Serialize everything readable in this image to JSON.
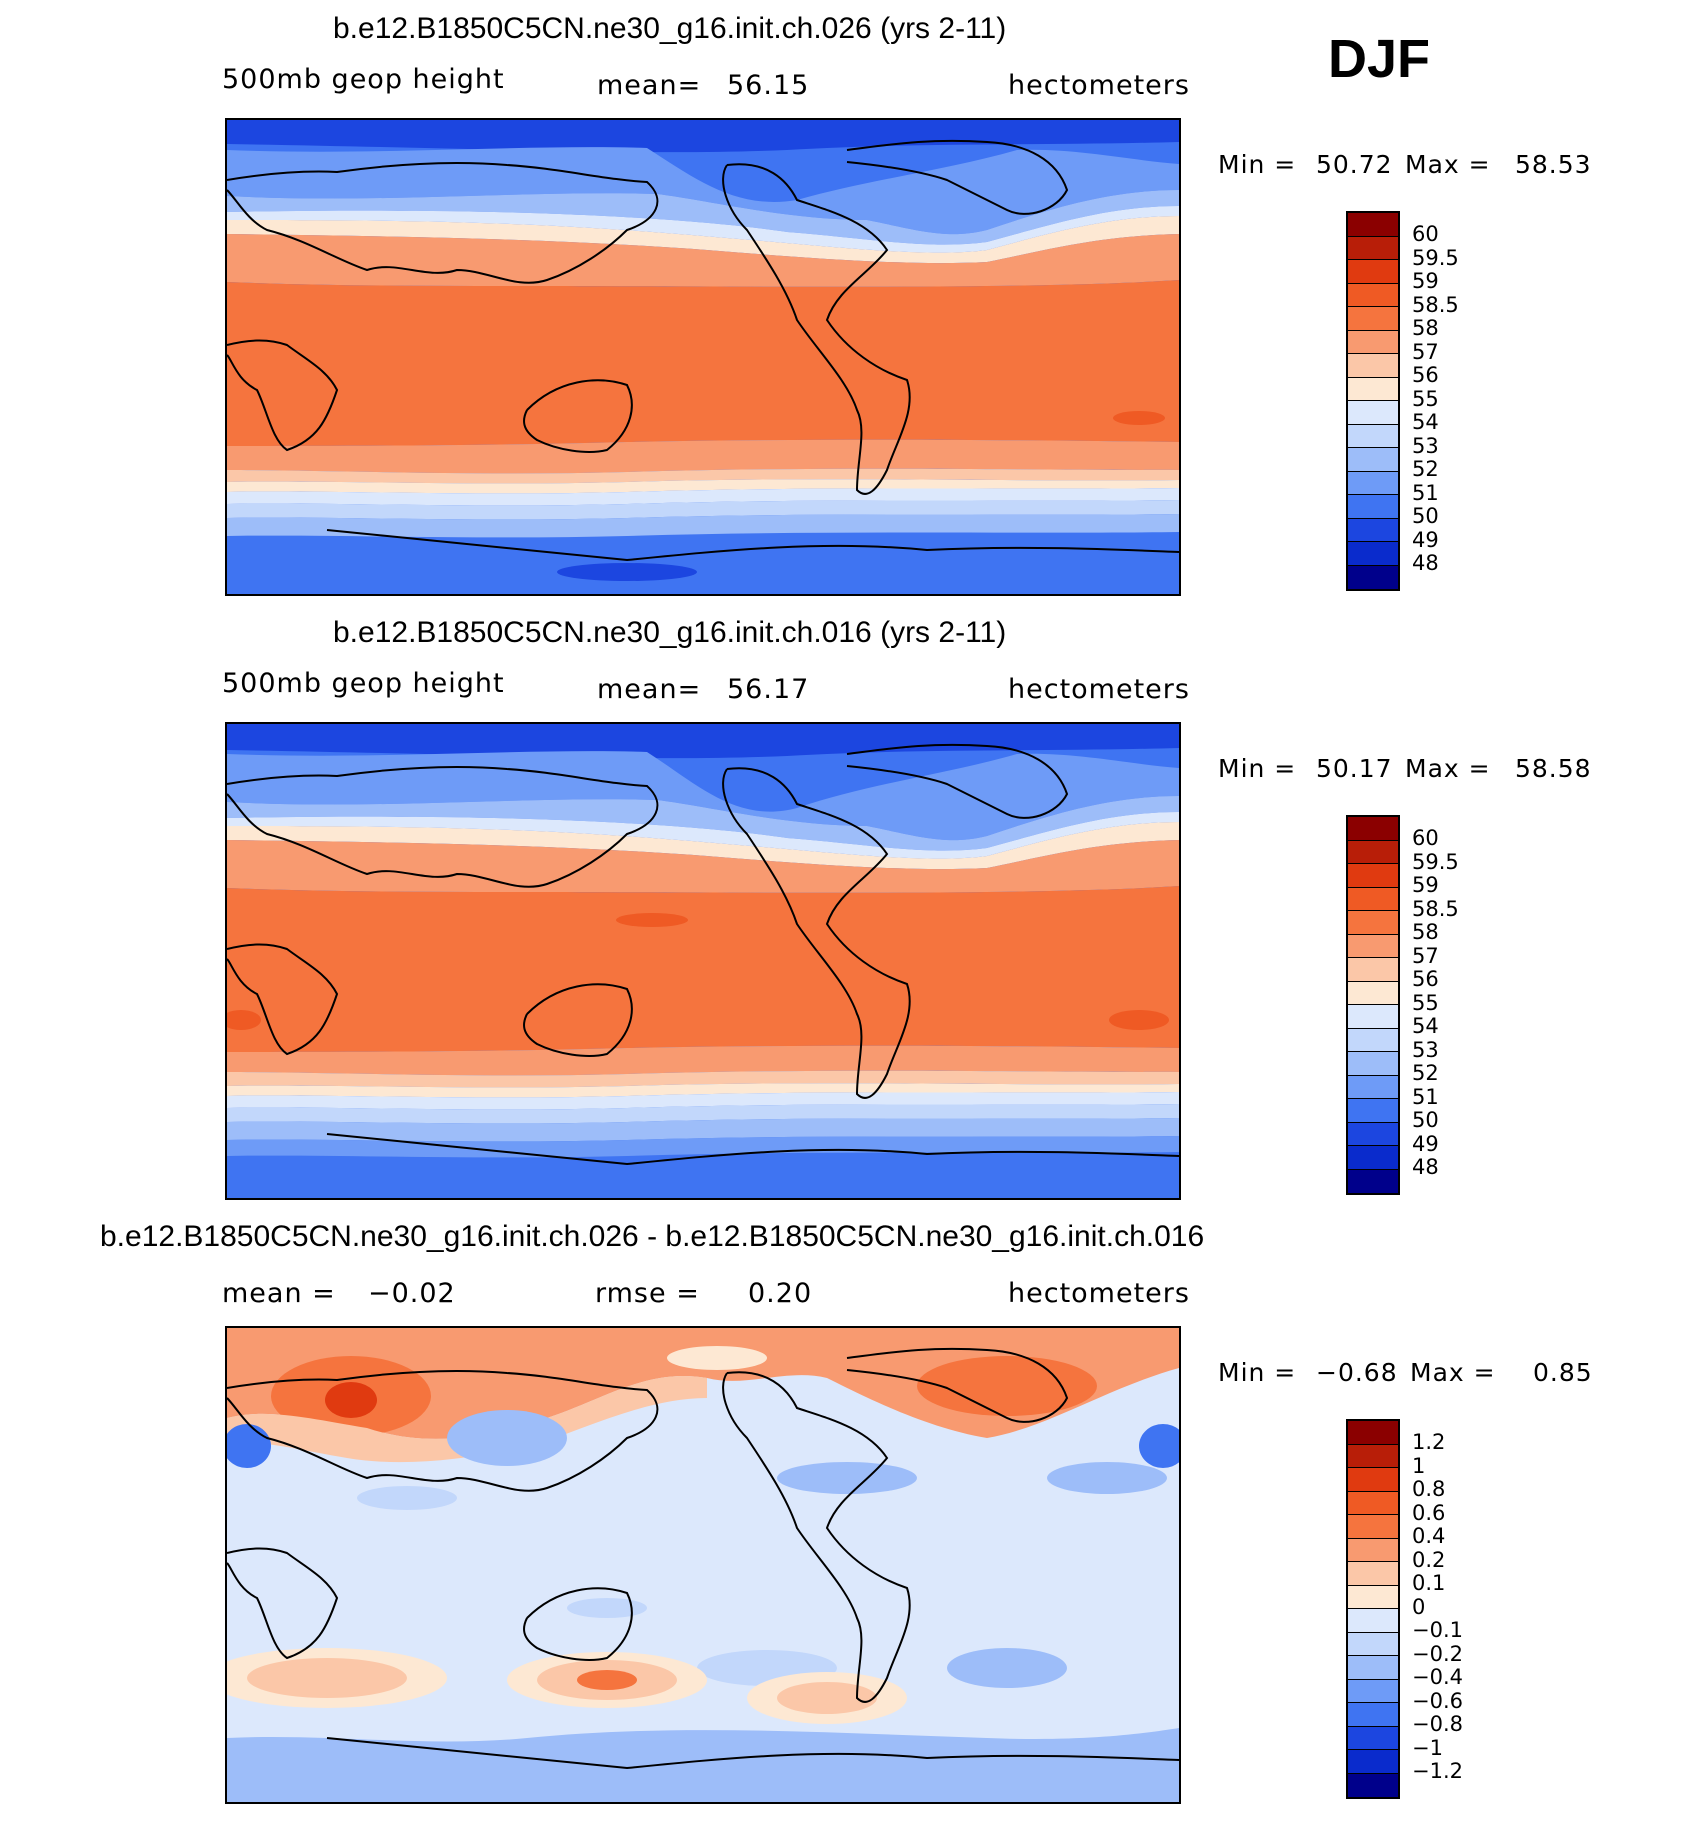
{
  "season": "DJF",
  "colors": {
    "dark_blue": "#00008b",
    "blue1": "#0a2bcc",
    "blue2": "#1c46e0",
    "blue3": "#3f74f2",
    "blue4": "#6e9bf7",
    "blue5": "#9dbdf9",
    "blue6": "#c2d7fb",
    "blue7": "#dce8fc",
    "cream": "#fde8d3",
    "peach": "#fbc7a8",
    "salmon": "#f89a70",
    "orange": "#f5743e",
    "orange2": "#ef5a24",
    "red1": "#e03a10",
    "red2": "#b81e08",
    "dark_red": "#8b0000",
    "coast": "#000000"
  },
  "chart_data": [
    {
      "type": "heatmap",
      "title": "b.e12.B1850C5CN.ne30_g16.init.ch.026 (yrs 2-11)",
      "variable": "500mb  geop  height",
      "mean_label": "mean=",
      "mean": "56.15",
      "units": "hectometers",
      "min_label": "Min  =",
      "min": "50.72",
      "max_label": "Max  =",
      "max": "58.53",
      "x_range_deg": [
        0,
        360
      ],
      "y_range_deg": [
        -90,
        90
      ],
      "colorbar_levels": [
        "60",
        "59.5",
        "59",
        "58.5",
        "58",
        "57",
        "56",
        "55",
        "54",
        "53",
        "52",
        "51",
        "50",
        "49",
        "48"
      ],
      "colorbar_colors": [
        "#8b0000",
        "#b81e08",
        "#e03a10",
        "#ef5a24",
        "#f5743e",
        "#f89a70",
        "#fbc7a8",
        "#fde8d3",
        "#dce8fc",
        "#c2d7fb",
        "#9dbdf9",
        "#6e9bf7",
        "#3f74f2",
        "#1c46e0",
        "#0a2bcc",
        "#00008b"
      ]
    },
    {
      "type": "heatmap",
      "title": "b.e12.B1850C5CN.ne30_g16.init.ch.016 (yrs 2-11)",
      "variable": "500mb  geop  height",
      "mean_label": "mean=",
      "mean": "56.17",
      "units": "hectometers",
      "min_label": "Min  =",
      "min": "50.17",
      "max_label": "Max  =",
      "max": "58.58",
      "x_range_deg": [
        0,
        360
      ],
      "y_range_deg": [
        -90,
        90
      ],
      "colorbar_levels": [
        "60",
        "59.5",
        "59",
        "58.5",
        "58",
        "57",
        "56",
        "55",
        "54",
        "53",
        "52",
        "51",
        "50",
        "49",
        "48"
      ],
      "colorbar_colors": [
        "#8b0000",
        "#b81e08",
        "#e03a10",
        "#ef5a24",
        "#f5743e",
        "#f89a70",
        "#fbc7a8",
        "#fde8d3",
        "#dce8fc",
        "#c2d7fb",
        "#9dbdf9",
        "#6e9bf7",
        "#3f74f2",
        "#1c46e0",
        "#0a2bcc",
        "#00008b"
      ]
    },
    {
      "type": "heatmap",
      "title": "b.e12.B1850C5CN.ne30_g16.init.ch.026 - b.e12.B1850C5CN.ne30_g16.init.ch.016",
      "variable_label": "mean  =",
      "mean": "−0.02",
      "rmse_label": "rmse  =",
      "rmse": "0.20",
      "units": "hectometers",
      "min_label": "Min  =",
      "min": "−0.68",
      "max_label": "Max  =",
      "max": "0.85",
      "x_range_deg": [
        0,
        360
      ],
      "y_range_deg": [
        -90,
        90
      ],
      "colorbar_levels": [
        "1.2",
        "1",
        "0.8",
        "0.6",
        "0.4",
        "0.2",
        "0.1",
        "0",
        "−0.1",
        "−0.2",
        "−0.4",
        "−0.6",
        "−0.8",
        "−1",
        "−1.2"
      ],
      "colorbar_colors": [
        "#8b0000",
        "#b81e08",
        "#e03a10",
        "#ef5a24",
        "#f5743e",
        "#f89a70",
        "#fbc7a8",
        "#fde8d3",
        "#dce8fc",
        "#c2d7fb",
        "#9dbdf9",
        "#6e9bf7",
        "#3f74f2",
        "#1c46e0",
        "#0a2bcc",
        "#00008b"
      ]
    }
  ]
}
